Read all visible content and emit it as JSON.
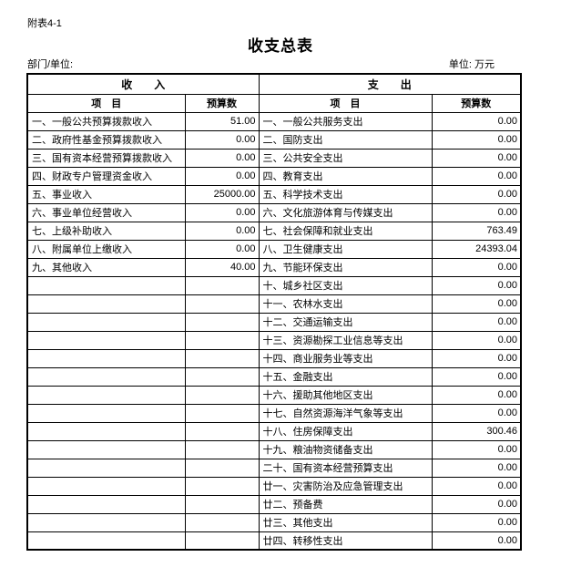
{
  "page": {
    "doc_label": "附表4-1",
    "title": "收支总表",
    "dept_label": "部门/单位:",
    "unit_label": "单位: 万元"
  },
  "table": {
    "income_section_header": "收　　入",
    "expense_section_header": "支　　出",
    "item_header": "项　目",
    "budget_header": "预算数",
    "rows": [
      {
        "income_item": "一、一般公共预算拨款收入",
        "income_value": "51.00",
        "expense_item": "一、一般公共服务支出",
        "expense_value": "0.00"
      },
      {
        "income_item": "二、政府性基金预算拨款收入",
        "income_value": "0.00",
        "expense_item": "二、国防支出",
        "expense_value": "0.00"
      },
      {
        "income_item": "三、国有资本经营预算拨款收入",
        "income_value": "0.00",
        "expense_item": "三、公共安全支出",
        "expense_value": "0.00"
      },
      {
        "income_item": "四、财政专户管理资金收入",
        "income_value": "0.00",
        "expense_item": "四、教育支出",
        "expense_value": "0.00"
      },
      {
        "income_item": "五、事业收入",
        "income_value": "25000.00",
        "expense_item": "五、科学技术支出",
        "expense_value": "0.00"
      },
      {
        "income_item": "六、事业单位经营收入",
        "income_value": "0.00",
        "expense_item": "六、文化旅游体育与传媒支出",
        "expense_value": "0.00"
      },
      {
        "income_item": "七、上级补助收入",
        "income_value": "0.00",
        "expense_item": "七、社会保障和就业支出",
        "expense_value": "763.49"
      },
      {
        "income_item": "八、附属单位上缴收入",
        "income_value": "0.00",
        "expense_item": "八、卫生健康支出",
        "expense_value": "24393.04"
      },
      {
        "income_item": "九、其他收入",
        "income_value": "40.00",
        "expense_item": "九、节能环保支出",
        "expense_value": "0.00"
      },
      {
        "income_item": "",
        "income_value": "",
        "expense_item": "十、城乡社区支出",
        "expense_value": "0.00"
      },
      {
        "income_item": "",
        "income_value": "",
        "expense_item": "十一、农林水支出",
        "expense_value": "0.00"
      },
      {
        "income_item": "",
        "income_value": "",
        "expense_item": "十二、交通运输支出",
        "expense_value": "0.00"
      },
      {
        "income_item": "",
        "income_value": "",
        "expense_item": "十三、资源勘探工业信息等支出",
        "expense_value": "0.00"
      },
      {
        "income_item": "",
        "income_value": "",
        "expense_item": "十四、商业服务业等支出",
        "expense_value": "0.00"
      },
      {
        "income_item": "",
        "income_value": "",
        "expense_item": "十五、金融支出",
        "expense_value": "0.00"
      },
      {
        "income_item": "",
        "income_value": "",
        "expense_item": "十六、援助其他地区支出",
        "expense_value": "0.00"
      },
      {
        "income_item": "",
        "income_value": "",
        "expense_item": "十七、自然资源海洋气象等支出",
        "expense_value": "0.00"
      },
      {
        "income_item": "",
        "income_value": "",
        "expense_item": "十八、住房保障支出",
        "expense_value": "300.46"
      },
      {
        "income_item": "",
        "income_value": "",
        "expense_item": "十九、粮油物资储备支出",
        "expense_value": "0.00"
      },
      {
        "income_item": "",
        "income_value": "",
        "expense_item": "二十、国有资本经营预算支出",
        "expense_value": "0.00"
      },
      {
        "income_item": "",
        "income_value": "",
        "expense_item": "廿一、灾害防治及应急管理支出",
        "expense_value": "0.00"
      },
      {
        "income_item": "",
        "income_value": "",
        "expense_item": "廿二、预备费",
        "expense_value": "0.00"
      },
      {
        "income_item": "",
        "income_value": "",
        "expense_item": "廿三、其他支出",
        "expense_value": "0.00"
      },
      {
        "income_item": "",
        "income_value": "",
        "expense_item": "廿四、转移性支出",
        "expense_value": "0.00"
      }
    ]
  }
}
